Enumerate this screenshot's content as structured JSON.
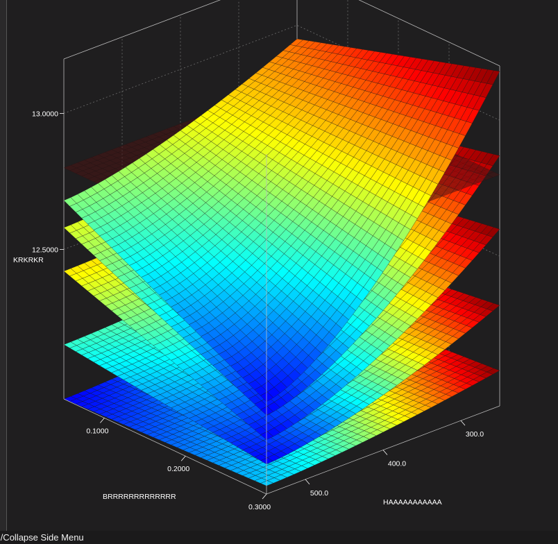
{
  "statusbar": {
    "text": "and/Collapse Side Menu"
  },
  "chart_data": {
    "type": "surface",
    "title": "",
    "xlabel": "HAAAAAAAAAAA",
    "ylabel": "BRRRRRRRRRRRRR",
    "zlabel": "KRKRKR",
    "x_ticks": [
      "300.0",
      "400.0",
      "500.0"
    ],
    "y_ticks": [
      "0.1000",
      "0.2000",
      "0.3000"
    ],
    "z_ticks": [
      "12.5000",
      "13.0000"
    ],
    "xlim": [
      250,
      550
    ],
    "ylim": [
      0.05,
      0.3
    ],
    "zlim": [
      11.95,
      13.2
    ],
    "colormap": "jet",
    "reference_plane": {
      "z": 12.8,
      "color": "#4a1414"
    },
    "surfaces": [
      {
        "corners": {
          "x300_y0.05": 12.95,
          "x550_y0.05": 12.68,
          "x300_y0.3": 13.18,
          "x550_y0.3": 12.29
        }
      },
      {
        "corners": {
          "x300_y0.05": 12.7,
          "x550_y0.05": 12.58,
          "x300_y0.3": 12.87,
          "x550_y0.3": 12.24
        }
      },
      {
        "corners": {
          "x300_y0.05": 12.48,
          "x550_y0.05": 12.42,
          "x300_y0.3": 12.6,
          "x550_y0.3": 12.15
        }
      },
      {
        "corners": {
          "x300_y0.05": 12.22,
          "x550_y0.05": 12.15,
          "x300_y0.3": 12.32,
          "x550_y0.3": 12.06
        }
      },
      {
        "corners": {
          "x300_y0.05": 12.02,
          "x550_y0.05": 11.95,
          "x300_y0.3": 12.08,
          "x550_y0.3": 11.98
        }
      }
    ],
    "grid": true,
    "background": "#1f1e1f"
  }
}
